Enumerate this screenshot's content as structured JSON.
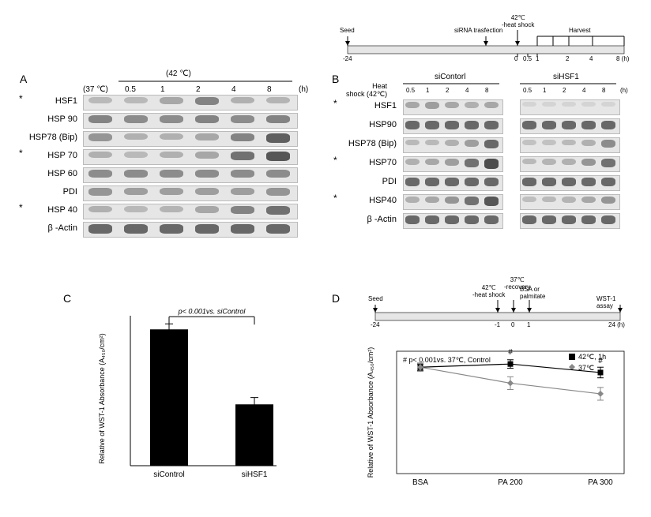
{
  "timelineTop": {
    "title_heat": "42℃\n-heat shock",
    "seed": "Seed",
    "siRNA": "siRNA trasfection",
    "harvest": "Harvest",
    "ticks": [
      "-24",
      "0",
      "0.5",
      "1",
      "2",
      "4",
      "8 (h)"
    ]
  },
  "panelA": {
    "label": "A",
    "tempHeader42": "(42 ℃)",
    "time37": "(37 ℃)",
    "lanes": [
      "0.5",
      "1",
      "2",
      "4",
      "8"
    ],
    "hSuffix": "(h)",
    "rows": [
      {
        "name": "HSF1",
        "star": true,
        "intensity": [
          0.25,
          0.25,
          0.35,
          0.55,
          0.3,
          0.28
        ]
      },
      {
        "name": "HSP 90",
        "star": false,
        "intensity": [
          0.55,
          0.5,
          0.5,
          0.55,
          0.5,
          0.55
        ]
      },
      {
        "name": "HSP78 (Bip)",
        "star": false,
        "intensity": [
          0.45,
          0.3,
          0.3,
          0.35,
          0.55,
          0.75
        ]
      },
      {
        "name": "HSP 70",
        "star": true,
        "intensity": [
          0.3,
          0.25,
          0.3,
          0.35,
          0.65,
          0.8
        ]
      },
      {
        "name": "HSP 60",
        "star": false,
        "intensity": [
          0.5,
          0.5,
          0.5,
          0.5,
          0.5,
          0.5
        ]
      },
      {
        "name": "PDI",
        "star": false,
        "intensity": [
          0.45,
          0.4,
          0.4,
          0.4,
          0.4,
          0.45
        ]
      },
      {
        "name": "HSP 40",
        "star": true,
        "intensity": [
          0.3,
          0.25,
          0.28,
          0.35,
          0.55,
          0.65
        ]
      },
      {
        "name": "β -Actin",
        "star": false,
        "intensity": [
          0.7,
          0.7,
          0.7,
          0.7,
          0.7,
          0.7
        ]
      }
    ]
  },
  "panelB": {
    "label": "B",
    "heatLabel": "Heat\nshock (42℃)",
    "group1": "siContorl",
    "group2": "siHSF1",
    "lanes": [
      "0.5",
      "1",
      "2",
      "4",
      "8"
    ],
    "hSuffix": "(h)",
    "rows": [
      {
        "name": "HSF1",
        "star": true,
        "i1": [
          0.35,
          0.4,
          0.35,
          0.3,
          0.35
        ],
        "i2": [
          0.1,
          0.1,
          0.1,
          0.1,
          0.1
        ]
      },
      {
        "name": "HSP90",
        "star": false,
        "i1": [
          0.7,
          0.7,
          0.7,
          0.7,
          0.7
        ],
        "i2": [
          0.7,
          0.7,
          0.7,
          0.7,
          0.7
        ]
      },
      {
        "name": "HSP78 (Bip)",
        "star": false,
        "i1": [
          0.25,
          0.25,
          0.3,
          0.4,
          0.7
        ],
        "i2": [
          0.2,
          0.2,
          0.25,
          0.3,
          0.5
        ]
      },
      {
        "name": "HSP70",
        "star": true,
        "i1": [
          0.3,
          0.35,
          0.4,
          0.65,
          0.85
        ],
        "i2": [
          0.25,
          0.28,
          0.3,
          0.45,
          0.65
        ]
      },
      {
        "name": "PDI",
        "star": false,
        "i1": [
          0.7,
          0.7,
          0.7,
          0.7,
          0.7
        ],
        "i2": [
          0.7,
          0.7,
          0.7,
          0.7,
          0.7
        ]
      },
      {
        "name": "HSP40",
        "star": true,
        "i1": [
          0.3,
          0.35,
          0.45,
          0.65,
          0.8
        ],
        "i2": [
          0.22,
          0.25,
          0.28,
          0.35,
          0.45
        ]
      },
      {
        "name": "β -Actin",
        "star": false,
        "i1": [
          0.7,
          0.7,
          0.7,
          0.7,
          0.7
        ],
        "i2": [
          0.7,
          0.7,
          0.7,
          0.7,
          0.7
        ]
      }
    ]
  },
  "panelC": {
    "label": "C",
    "ylabel": "Relative of WST-1 Absorbance (A₄₅₀/cm²)",
    "pText": "p< 0.001vs. siControl",
    "bars": [
      {
        "label": "siControl",
        "value": 1.0,
        "err": 0.04,
        "color": "#000000"
      },
      {
        "label": "siHSF1",
        "value": 0.45,
        "err": 0.05,
        "color": "#000000"
      }
    ],
    "ylim": [
      0,
      1.1
    ],
    "barWidth": 48,
    "gap": 60
  },
  "panelD": {
    "label": "D",
    "timeline": {
      "seed": "Seed",
      "heat": "42℃\n-heat shock",
      "recov": "37℃\n-recovery",
      "treat": "BSA or\npalmitate",
      "wst": "WST-1 assay",
      "ticks": [
        "-24",
        "-1",
        "0",
        "1",
        "24 (h)"
      ]
    },
    "ylabel": "Relative of WST-1 Absorbance (A₄₅₀/cm²)",
    "note": "# p< 0.001vs. 37℃, Control",
    "legend": [
      {
        "label": "42℃, 1h",
        "color": "#000000",
        "marker": "square"
      },
      {
        "label": "37℃",
        "color": "#888888",
        "marker": "diamond"
      }
    ],
    "xcategories": [
      "BSA",
      "PA 200",
      "PA 300"
    ],
    "series": [
      {
        "name": "42C",
        "color": "#000000",
        "values": [
          1.0,
          1.03,
          0.95
        ],
        "err": [
          0.03,
          0.04,
          0.05
        ],
        "hash": [
          false,
          true,
          true
        ]
      },
      {
        "name": "37C",
        "color": "#888888",
        "values": [
          1.0,
          0.85,
          0.75
        ],
        "err": [
          0.04,
          0.06,
          0.06
        ],
        "hash": [
          false,
          false,
          false
        ]
      }
    ],
    "ylim": [
      0,
      1.15
    ]
  },
  "colors": {
    "blotBg": "#e6e6e6",
    "grey": "#888888",
    "black": "#000000"
  }
}
